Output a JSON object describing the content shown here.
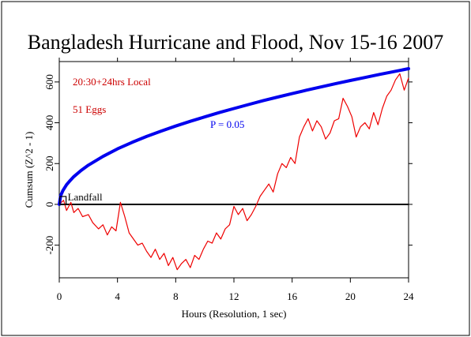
{
  "chart_data": {
    "type": "line",
    "title": "Bangladesh Hurricane and Flood, Nov 15-16 2007",
    "xlabel": "Hours (Resolution, 1 sec)",
    "ylabel": "Cumsum (Z^2 - 1)",
    "xlim": [
      0,
      24
    ],
    "ylim": [
      -360,
      700
    ],
    "x_ticks": [
      0,
      4,
      8,
      12,
      16,
      20,
      24
    ],
    "y_ticks": [
      -200,
      0,
      200,
      400,
      600
    ],
    "grid": false,
    "annotations": {
      "time_window": "20:30+24hrs Local",
      "egg_count": "51 Eggs",
      "p_label": "P = 0.05",
      "event_label": "Landfall",
      "event_x": 0.25
    },
    "colors": {
      "cumsum": "#ee0000",
      "envelope": "#0000ee",
      "baseline": "#000000",
      "annotation": "#cc0000"
    },
    "series": [
      {
        "role": "cumsum",
        "x": [
          0,
          0.3,
          0.5,
          0.8,
          1.0,
          1.3,
          1.6,
          2.0,
          2.3,
          2.7,
          3.0,
          3.3,
          3.6,
          3.9,
          4.2,
          4.5,
          4.8,
          5.1,
          5.4,
          5.7,
          6.0,
          6.3,
          6.6,
          6.9,
          7.2,
          7.5,
          7.8,
          8.1,
          8.4,
          8.7,
          9.0,
          9.3,
          9.6,
          9.9,
          10.2,
          10.5,
          10.8,
          11.1,
          11.4,
          11.7,
          12.0,
          12.3,
          12.6,
          12.9,
          13.2,
          13.5,
          13.8,
          14.1,
          14.4,
          14.7,
          15.0,
          15.3,
          15.6,
          15.9,
          16.2,
          16.5,
          16.8,
          17.1,
          17.4,
          17.7,
          18.0,
          18.3,
          18.6,
          18.9,
          19.2,
          19.5,
          19.8,
          20.1,
          20.4,
          20.7,
          21.0,
          21.3,
          21.6,
          21.9,
          22.2,
          22.5,
          22.8,
          23.1,
          23.4,
          23.7,
          24.0
        ],
        "y": [
          0,
          20,
          -30,
          10,
          -40,
          -20,
          -60,
          -50,
          -90,
          -120,
          -100,
          -150,
          -110,
          -130,
          10,
          -60,
          -140,
          -170,
          -200,
          -190,
          -230,
          -260,
          -220,
          -270,
          -240,
          -300,
          -260,
          -320,
          -290,
          -270,
          -310,
          -250,
          -270,
          -220,
          -180,
          -190,
          -140,
          -170,
          -120,
          -100,
          -10,
          -50,
          -20,
          -80,
          -50,
          -10,
          40,
          70,
          100,
          60,
          150,
          200,
          180,
          230,
          200,
          330,
          380,
          420,
          360,
          410,
          380,
          320,
          350,
          410,
          420,
          520,
          480,
          430,
          330,
          380,
          400,
          370,
          450,
          390,
          470,
          530,
          560,
          610,
          640,
          560,
          620
        ]
      },
      {
        "role": "envelope",
        "p": 0.05,
        "coefficient": 1.96,
        "x": [
          0,
          0.1,
          0.25,
          0.5,
          0.75,
          1,
          1.5,
          2,
          3,
          4,
          5,
          6,
          7,
          8,
          9,
          10,
          11,
          12,
          13,
          14,
          15,
          16,
          17,
          18,
          19,
          20,
          21,
          22,
          23,
          24
        ],
        "y": [
          0,
          43,
          68,
          96,
          117,
          136,
          166,
          192,
          235,
          272,
          304,
          333,
          359,
          384,
          407,
          429,
          450,
          470,
          489,
          508,
          526,
          543,
          560,
          576,
          592,
          607,
          622,
          637,
          651,
          665
        ]
      }
    ]
  }
}
